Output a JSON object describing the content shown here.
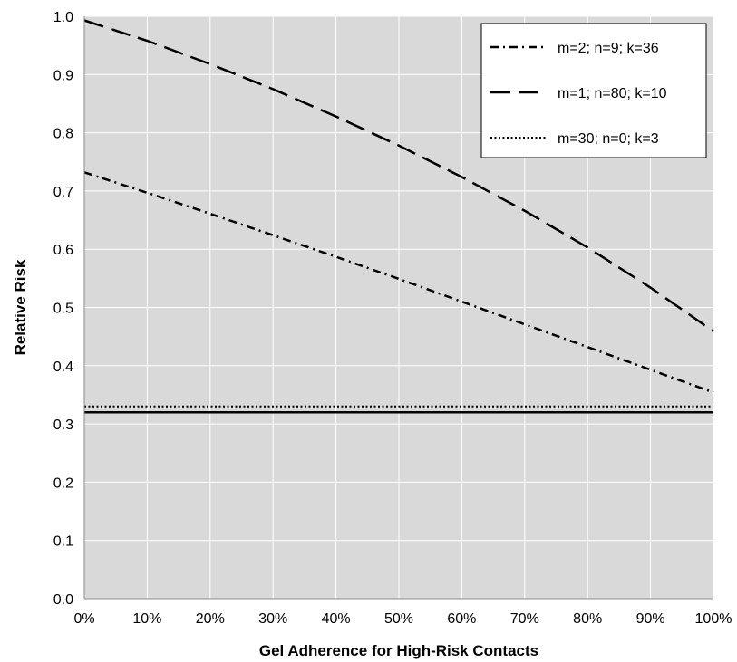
{
  "chart_data": {
    "type": "line",
    "title": "",
    "xlabel": "Gel Adherence for High-Risk Contacts",
    "ylabel": "Relative Risk",
    "x": [
      0,
      10,
      20,
      30,
      40,
      50,
      60,
      70,
      80,
      90,
      100
    ],
    "x_tick_labels": [
      "0%",
      "10%",
      "20%",
      "30%",
      "40%",
      "50%",
      "60%",
      "70%",
      "80%",
      "90%",
      "100%"
    ],
    "y_ticks": [
      0.0,
      0.1,
      0.2,
      0.3,
      0.4,
      0.5,
      0.6,
      0.7,
      0.8,
      0.9,
      1.0
    ],
    "y_tick_labels": [
      "0.0",
      "0.1",
      "0.2",
      "0.3",
      "0.4",
      "0.5",
      "0.6",
      "0.7",
      "0.8",
      "0.9",
      "1.0"
    ],
    "xlim": [
      0,
      100
    ],
    "ylim": [
      0,
      1.0
    ],
    "grid": true,
    "legend_position": "top-right",
    "series": [
      {
        "name": "m=2; n=9; k=36",
        "line_style": "dash-dot",
        "values": [
          0.732,
          0.697,
          0.661,
          0.624,
          0.587,
          0.549,
          0.51,
          0.471,
          0.432,
          0.393,
          0.354
        ]
      },
      {
        "name": "m=1; n=80; k=10",
        "line_style": "long-dash",
        "values": [
          0.993,
          0.958,
          0.918,
          0.875,
          0.828,
          0.778,
          0.724,
          0.666,
          0.603,
          0.534,
          0.459
        ]
      },
      {
        "name": "m=30; n=0; k=3",
        "line_style": "dotted",
        "values": [
          0.33,
          0.33,
          0.33,
          0.33,
          0.33,
          0.33,
          0.33,
          0.33,
          0.33,
          0.33,
          0.33
        ]
      }
    ],
    "reference_line": {
      "y": 0.32,
      "line_style": "solid"
    },
    "colors": {
      "plot_background": "#d9d9d9",
      "grid": "#ffffff",
      "line": "#000000"
    }
  }
}
